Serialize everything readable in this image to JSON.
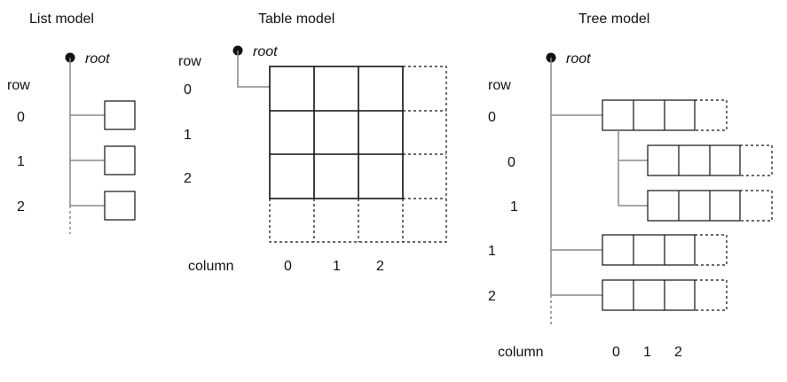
{
  "list_model": {
    "title": "List model",
    "root": "root",
    "row_header": "row",
    "rows": [
      "0",
      "1",
      "2"
    ]
  },
  "table_model": {
    "title": "Table model",
    "root": "root",
    "row_header": "row",
    "rows": [
      "0",
      "1",
      "2"
    ],
    "column_header": "column",
    "columns": [
      "0",
      "1",
      "2"
    ]
  },
  "tree_model": {
    "title": "Tree model",
    "root": "root",
    "row_header": "row",
    "top_rows": [
      "0",
      "1",
      "2"
    ],
    "child_rows": [
      "0",
      "1"
    ],
    "column_header": "column",
    "columns": [
      "0",
      "1",
      "2"
    ]
  }
}
